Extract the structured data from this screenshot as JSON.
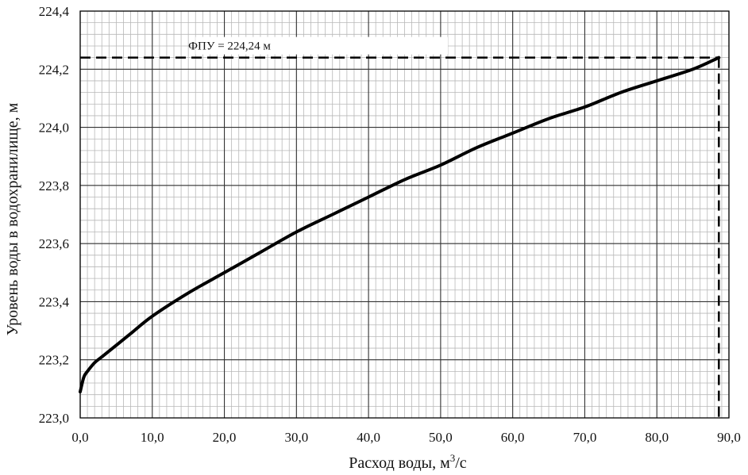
{
  "chart_data": {
    "type": "line",
    "title": "",
    "xlabel": "Расход воды, м",
    "xlabel_sup": "3",
    "xlabel_suffix": "/с",
    "ylabel": "Уровень воды в водохранилище, м",
    "xlim": [
      0,
      90
    ],
    "ylim": [
      223.0,
      224.4
    ],
    "x_ticks": [
      "0,0",
      "10,0",
      "20,0",
      "30,0",
      "40,0",
      "50,0",
      "60,0",
      "70,0",
      "80,0",
      "90,0"
    ],
    "y_ticks": [
      "223,0",
      "223,2",
      "223,4",
      "223,6",
      "223,8",
      "224,0",
      "224,2",
      "224,4"
    ],
    "x_tick_values": [
      0,
      10,
      20,
      30,
      40,
      50,
      60,
      70,
      80,
      90
    ],
    "y_tick_values": [
      223.0,
      223.2,
      223.4,
      223.6,
      223.8,
      224.0,
      224.2,
      224.4
    ],
    "grid": "major and minor",
    "series": [
      {
        "x": [
          0,
          0.5,
          1,
          2,
          3,
          5,
          7,
          10,
          15,
          20,
          25,
          30,
          35,
          40,
          45,
          50,
          55,
          60,
          65,
          70,
          75,
          80,
          85,
          88.6
        ],
        "y": [
          223.09,
          223.14,
          223.16,
          223.19,
          223.21,
          223.25,
          223.29,
          223.35,
          223.43,
          223.5,
          223.57,
          223.64,
          223.7,
          223.76,
          223.82,
          223.87,
          223.93,
          223.98,
          224.03,
          224.07,
          224.12,
          224.16,
          224.2,
          224.24
        ]
      }
    ],
    "reference": {
      "label": "ФПУ = 224,24 м",
      "level": 224.24,
      "discharge": 88.6
    }
  }
}
